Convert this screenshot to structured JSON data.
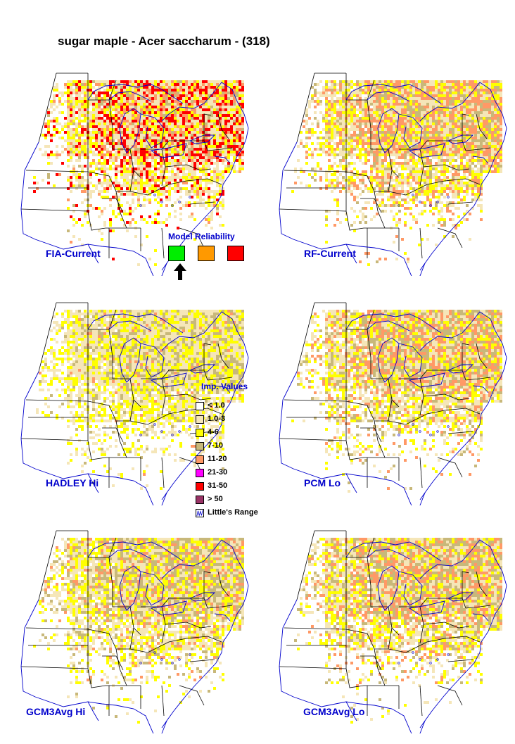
{
  "title": "sugar maple - Acer saccharum - (318)",
  "colors": {
    "boundary": "#000000",
    "coast": "#0000cc",
    "label": "#0000cc"
  },
  "maps": [
    {
      "id": "fia",
      "label": "FIA-Current",
      "fill": {
        "c1": 0.38,
        "c2": 0.25,
        "c3": 0.05,
        "c4": 0.14,
        "c5": 0.18
      }
    },
    {
      "id": "rf",
      "label": "RF-Current",
      "fill": {
        "c1": 0.32,
        "c2": 0.25,
        "c3": 0.15,
        "c4": 0.28,
        "c5": 0.0
      }
    },
    {
      "id": "hadley",
      "label": "HADLEY Hi",
      "fill": {
        "c1": 0.38,
        "c2": 0.25,
        "c3": 0.12,
        "c4": 0.02,
        "c5": 0.0
      }
    },
    {
      "id": "pcm",
      "label": "PCM Lo",
      "fill": {
        "c1": 0.32,
        "c2": 0.22,
        "c3": 0.22,
        "c4": 0.24,
        "c5": 0.0
      }
    },
    {
      "id": "gcm3hi",
      "label": "GCM3Avg Hi",
      "fill": {
        "c1": 0.35,
        "c2": 0.25,
        "c3": 0.2,
        "c4": 0.12,
        "c5": 0.0
      }
    },
    {
      "id": "gcm3lo",
      "label": "GCM3Avg Lo",
      "fill": {
        "c1": 0.33,
        "c2": 0.22,
        "c3": 0.2,
        "c4": 0.22,
        "c5": 0.0
      }
    }
  ],
  "reliability": {
    "title": "Model Reliability",
    "levels": [
      {
        "name": "high",
        "color": "#00ee00"
      },
      {
        "name": "medium",
        "color": "#ff9900"
      },
      {
        "name": "low",
        "color": "#ff0000"
      }
    ],
    "selected": "high"
  },
  "legend": {
    "title": "Imp. Values",
    "items": [
      {
        "label": "< 1.0",
        "color": "#ffffff"
      },
      {
        "label": "1.0-3",
        "color": "#f5e6b8"
      },
      {
        "label": "4-6",
        "color": "#ffff00"
      },
      {
        "label": "7-10",
        "color": "#c8b87a"
      },
      {
        "label": "11-20",
        "color": "#ff9966"
      },
      {
        "label": "21-30",
        "color": "#ff00ff"
      },
      {
        "label": "31-50",
        "color": "#ff0000"
      },
      {
        "label": "> 50",
        "color": "#993366"
      }
    ],
    "range_label": "Little's Range"
  }
}
